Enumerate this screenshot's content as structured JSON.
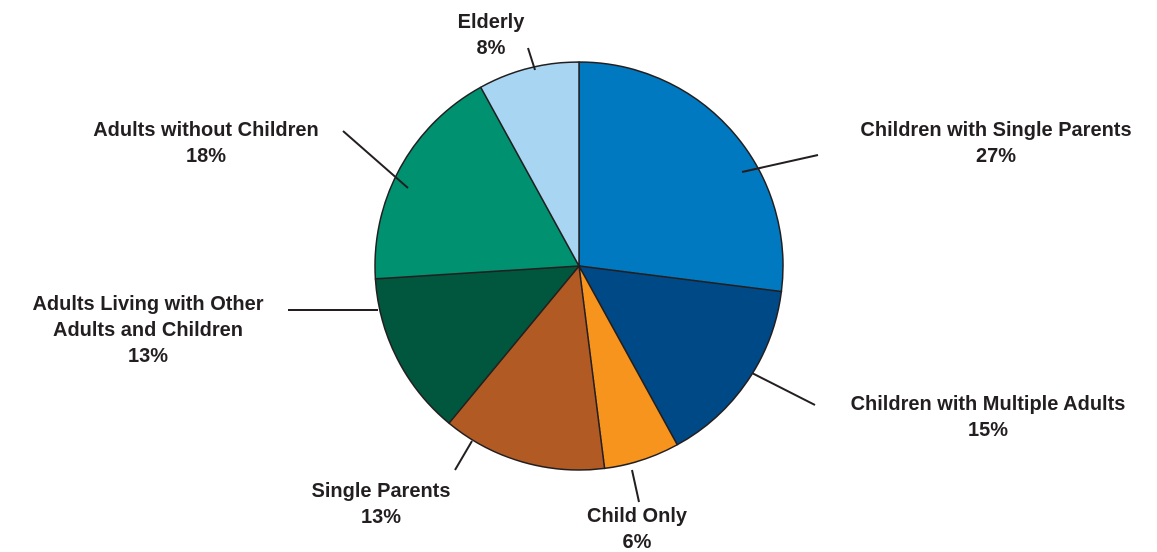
{
  "chart_data": {
    "type": "pie",
    "title": "",
    "start": "12 o'clock",
    "direction": "clockwise",
    "slices": [
      {
        "name": "Children with Single Parents",
        "value": 27,
        "value_label": "27%",
        "color": "#0079c1"
      },
      {
        "name": "Children with Multiple Adults",
        "value": 15,
        "value_label": "15%",
        "color": "#004987"
      },
      {
        "name": "Child Only",
        "value": 6,
        "value_label": "6%",
        "color": "#f7941d"
      },
      {
        "name": "Single Parents",
        "value": 13,
        "value_label": "13%",
        "color": "#b15a23"
      },
      {
        "name": "Adults Living with Other Adults and Children",
        "value": 13,
        "value_label": "13%",
        "color": "#00573d"
      },
      {
        "name": "Adults without Children",
        "value": 18,
        "value_label": "18%",
        "color": "#009170"
      },
      {
        "name": "Elderly",
        "value": 8,
        "value_label": "8%",
        "color": "#a7d5f2"
      }
    ]
  }
}
